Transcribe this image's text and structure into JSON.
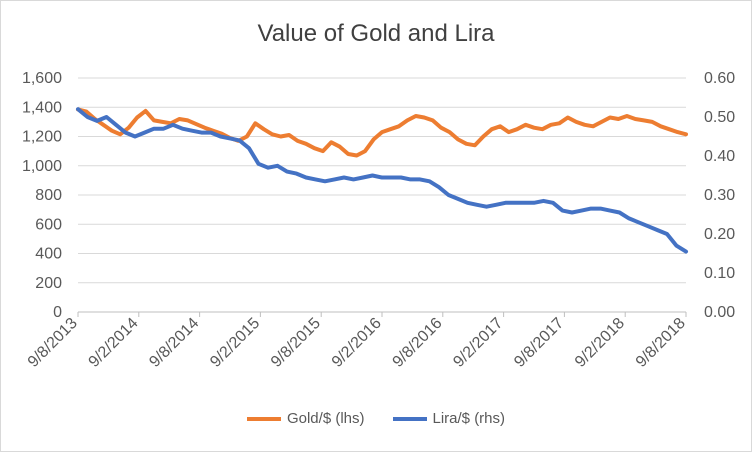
{
  "chart_data": {
    "type": "line",
    "title": "Value of Gold and Lira",
    "x_ticks": [
      "9/8/2013",
      "9/2/2014",
      "9/8/2014",
      "9/2/2015",
      "9/8/2015",
      "9/2/2016",
      "9/8/2016",
      "9/2/2017",
      "9/8/2017",
      "9/2/2018",
      "9/8/2018"
    ],
    "y_left": {
      "ticks": [
        "0",
        "200",
        "400",
        "600",
        "800",
        "1,000",
        "1,200",
        "1,400",
        "1,600"
      ],
      "range": [
        0,
        1600
      ]
    },
    "y_right": {
      "ticks": [
        "0.00",
        "0.10",
        "0.20",
        "0.30",
        "0.40",
        "0.50",
        "0.60"
      ],
      "range": [
        0,
        0.6
      ]
    },
    "grid": true,
    "legend_position": "bottom",
    "series": [
      {
        "name": "Gold/$  (lhs)",
        "axis": "left",
        "color": "#ED7D31",
        "values": [
          1385,
          1370,
          1320,
          1280,
          1240,
          1215,
          1260,
          1330,
          1375,
          1310,
          1300,
          1290,
          1320,
          1310,
          1285,
          1260,
          1240,
          1220,
          1190,
          1170,
          1200,
          1290,
          1250,
          1215,
          1200,
          1210,
          1170,
          1150,
          1120,
          1100,
          1160,
          1130,
          1080,
          1070,
          1100,
          1180,
          1230,
          1250,
          1270,
          1310,
          1340,
          1330,
          1310,
          1260,
          1230,
          1180,
          1150,
          1140,
          1200,
          1250,
          1270,
          1230,
          1250,
          1280,
          1260,
          1250,
          1280,
          1290,
          1330,
          1300,
          1280,
          1270,
          1300,
          1330,
          1320,
          1340,
          1320,
          1310,
          1300,
          1270,
          1250,
          1230,
          1215
        ]
      },
      {
        "name": "Lira/$ (rhs)",
        "axis": "right",
        "color": "#4472C4",
        "values": [
          0.52,
          0.5,
          0.49,
          0.5,
          0.48,
          0.46,
          0.45,
          0.46,
          0.47,
          0.47,
          0.48,
          0.47,
          0.465,
          0.46,
          0.46,
          0.45,
          0.445,
          0.44,
          0.42,
          0.38,
          0.37,
          0.375,
          0.36,
          0.355,
          0.345,
          0.34,
          0.335,
          0.34,
          0.345,
          0.34,
          0.345,
          0.35,
          0.345,
          0.345,
          0.345,
          0.34,
          0.34,
          0.335,
          0.32,
          0.3,
          0.29,
          0.28,
          0.275,
          0.27,
          0.275,
          0.28,
          0.28,
          0.28,
          0.28,
          0.285,
          0.28,
          0.26,
          0.255,
          0.26,
          0.265,
          0.265,
          0.26,
          0.255,
          0.24,
          0.23,
          0.22,
          0.21,
          0.2,
          0.17,
          0.155
        ]
      }
    ]
  }
}
